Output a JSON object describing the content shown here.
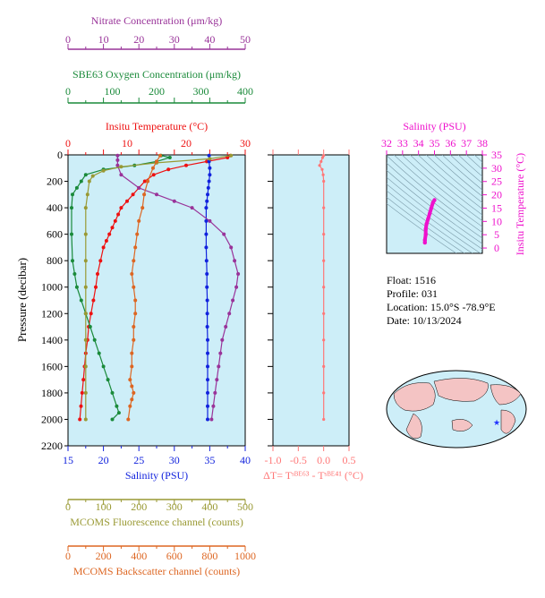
{
  "chart_data": [
    {
      "type": "line",
      "panel": "main-profile",
      "ylabel": "Pressure (decibar)",
      "ylim": [
        2200,
        0
      ],
      "yticks": [
        0,
        200,
        400,
        600,
        800,
        1000,
        1200,
        1400,
        1600,
        1800,
        2000,
        2200
      ],
      "axes": [
        {
          "key": "nitrate",
          "label": "Nitrate Concentration (μm/kg)",
          "range": [
            0,
            50
          ],
          "ticks": [
            0,
            10,
            20,
            30,
            40,
            50
          ],
          "color": "#993399"
        },
        {
          "key": "oxygen",
          "label": "SBE63 Oxygen Concentration (μm/kg)",
          "range": [
            0,
            400
          ],
          "ticks": [
            0,
            100,
            200,
            300,
            400
          ],
          "color": "#1a8a3a"
        },
        {
          "key": "temperature",
          "label": "Insitu Temperature (°C)",
          "range": [
            0,
            30
          ],
          "ticks": [
            0,
            10,
            20,
            30
          ],
          "color": "#ee1111"
        },
        {
          "key": "salinity",
          "label": "Salinity (PSU)",
          "range": [
            15,
            40
          ],
          "ticks": [
            15,
            20,
            25,
            30,
            35,
            40
          ],
          "color": "#1122dd"
        },
        {
          "key": "fluorescence",
          "label": "MCOMS Fluorescence channel (counts)",
          "range": [
            0,
            500
          ],
          "ticks": [
            0,
            100,
            200,
            300,
            400,
            500
          ],
          "color": "#999933"
        },
        {
          "key": "backscatter",
          "label": "MCOMS Backscatter channel (counts)",
          "range": [
            0,
            1000
          ],
          "ticks": [
            0,
            200,
            400,
            600,
            800,
            1000
          ],
          "color": "#dd6622"
        }
      ],
      "series": [
        {
          "key": "temperature",
          "x_axis": "temperature",
          "color": "#ee1111",
          "points": [
            [
              27.5,
              5
            ],
            [
              27,
              20
            ],
            [
              23.5,
              50
            ],
            [
              20,
              80
            ],
            [
              17,
              110
            ],
            [
              14.5,
              150
            ],
            [
              13,
              200
            ],
            [
              12,
              250
            ],
            [
              11,
              300
            ],
            [
              10,
              350
            ],
            [
              9,
              400
            ],
            [
              8.5,
              450
            ],
            [
              8,
              500
            ],
            [
              7.5,
              550
            ],
            [
              7,
              600
            ],
            [
              6.5,
              650
            ],
            [
              6,
              700
            ],
            [
              5.5,
              800
            ],
            [
              5,
              900
            ],
            [
              4.7,
              1000
            ],
            [
              4.3,
              1100
            ],
            [
              3.9,
              1200
            ],
            [
              3.5,
              1300
            ],
            [
              3.3,
              1400
            ],
            [
              3,
              1500
            ],
            [
              2.8,
              1600
            ],
            [
              2.6,
              1700
            ],
            [
              2.4,
              1800
            ],
            [
              2.2,
              1900
            ],
            [
              2,
              2000
            ]
          ]
        },
        {
          "key": "salinity",
          "x_axis": "salinity",
          "color": "#1122dd",
          "points": [
            [
              34.9,
              5
            ],
            [
              34.9,
              50
            ],
            [
              35,
              100
            ],
            [
              35,
              150
            ],
            [
              34.9,
              200
            ],
            [
              34.8,
              250
            ],
            [
              34.7,
              300
            ],
            [
              34.6,
              350
            ],
            [
              34.5,
              400
            ],
            [
              34.5,
              500
            ],
            [
              34.5,
              600
            ],
            [
              34.5,
              700
            ],
            [
              34.55,
              800
            ],
            [
              34.6,
              900
            ],
            [
              34.6,
              1000
            ],
            [
              34.65,
              1100
            ],
            [
              34.65,
              1200
            ],
            [
              34.65,
              1300
            ],
            [
              34.7,
              1400
            ],
            [
              34.7,
              1500
            ],
            [
              34.7,
              1600
            ],
            [
              34.7,
              1700
            ],
            [
              34.7,
              1800
            ],
            [
              34.7,
              1900
            ],
            [
              34.7,
              2000
            ]
          ]
        },
        {
          "key": "nitrate",
          "x_axis": "nitrate",
          "color": "#993399",
          "points": [
            [
              14,
              5
            ],
            [
              14,
              40
            ],
            [
              14,
              80
            ],
            [
              15,
              150
            ],
            [
              20,
              250
            ],
            [
              25,
              300
            ],
            [
              30,
              350
            ],
            [
              35,
              400
            ],
            [
              40,
              500
            ],
            [
              44,
              600
            ],
            [
              46,
              700
            ],
            [
              47,
              800
            ],
            [
              48,
              900
            ],
            [
              47.5,
              1000
            ],
            [
              46.5,
              1100
            ],
            [
              45.5,
              1200
            ],
            [
              44.5,
              1300
            ],
            [
              43.5,
              1400
            ],
            [
              43,
              1500
            ],
            [
              42.5,
              1600
            ],
            [
              42,
              1700
            ],
            [
              41.5,
              1800
            ],
            [
              41,
              1900
            ],
            [
              40.5,
              2000
            ]
          ]
        },
        {
          "key": "oxygen",
          "x_axis": "oxygen",
          "color": "#1a8a3a",
          "points": [
            [
              210,
              5
            ],
            [
              230,
              20
            ],
            [
              200,
              50
            ],
            [
              150,
              80
            ],
            [
              80,
              110
            ],
            [
              40,
              150
            ],
            [
              30,
              200
            ],
            [
              20,
              250
            ],
            [
              10,
              300
            ],
            [
              8,
              400
            ],
            [
              8,
              600
            ],
            [
              10,
              800
            ],
            [
              15,
              900
            ],
            [
              20,
              1000
            ],
            [
              30,
              1100
            ],
            [
              40,
              1200
            ],
            [
              50,
              1300
            ],
            [
              60,
              1400
            ],
            [
              70,
              1500
            ],
            [
              80,
              1600
            ],
            [
              90,
              1700
            ],
            [
              100,
              1800
            ],
            [
              110,
              1900
            ],
            [
              115,
              1950
            ],
            [
              100,
              2000
            ]
          ]
        },
        {
          "key": "fluorescence",
          "x_axis": "fluorescence",
          "color": "#999933",
          "points": [
            [
              460,
              5
            ],
            [
              400,
              30
            ],
            [
              250,
              60
            ],
            [
              150,
              90
            ],
            [
              100,
              120
            ],
            [
              70,
              160
            ],
            [
              60,
              200
            ],
            [
              55,
              300
            ],
            [
              50,
              400
            ],
            [
              50,
              600
            ],
            [
              50,
              800
            ],
            [
              50,
              1000
            ],
            [
              50,
              1200
            ],
            [
              50,
              1400
            ],
            [
              50,
              1600
            ],
            [
              50,
              1800
            ],
            [
              50,
              2000
            ]
          ]
        },
        {
          "key": "backscatter",
          "x_axis": "backscatter",
          "color": "#dd6622",
          "points": [
            [
              520,
              5
            ],
            [
              500,
              50
            ],
            [
              480,
              100
            ],
            [
              450,
              200
            ],
            [
              430,
              300
            ],
            [
              420,
              400
            ],
            [
              400,
              500
            ],
            [
              390,
              600
            ],
            [
              380,
              700
            ],
            [
              370,
              800
            ],
            [
              360,
              900
            ],
            [
              370,
              1000
            ],
            [
              380,
              1100
            ],
            [
              380,
              1200
            ],
            [
              370,
              1300
            ],
            [
              370,
              1400
            ],
            [
              360,
              1500
            ],
            [
              360,
              1600
            ],
            [
              350,
              1700
            ],
            [
              360,
              1750
            ],
            [
              370,
              1800
            ],
            [
              360,
              1850
            ],
            [
              350,
              1900
            ],
            [
              340,
              2000
            ]
          ]
        }
      ]
    },
    {
      "type": "line",
      "panel": "delta-t",
      "xlabel": "ΔT= T^SBE63 - T^SBE41 (°C)",
      "xlim": [
        -1.0,
        0.5
      ],
      "xticks": [
        -1.0,
        -0.5,
        0.0,
        0.5
      ],
      "ylim": [
        2200,
        0
      ],
      "color": "#ff7777",
      "points": [
        [
          0.0,
          5
        ],
        [
          -0.02,
          20
        ],
        [
          -0.05,
          50
        ],
        [
          -0.08,
          80
        ],
        [
          -0.03,
          110
        ],
        [
          -0.01,
          150
        ],
        [
          0.0,
          200
        ],
        [
          0.0,
          400
        ],
        [
          0.0,
          600
        ],
        [
          0.0,
          800
        ],
        [
          0.0,
          1000
        ],
        [
          0.0,
          1200
        ],
        [
          0.0,
          1400
        ],
        [
          0.0,
          1600
        ],
        [
          0.0,
          1800
        ],
        [
          0.0,
          2000
        ]
      ]
    },
    {
      "type": "scatter",
      "panel": "ts-diagram",
      "title": "Salinity (PSU)",
      "ylabel": "Insitu Temperature (°C)",
      "xlim": [
        32,
        38
      ],
      "xticks": [
        32,
        33,
        34,
        35,
        36,
        37,
        38
      ],
      "ylim": [
        -2,
        35
      ],
      "yticks": [
        0,
        5,
        10,
        15,
        20,
        25,
        30,
        35
      ],
      "color": "#ee11cc",
      "points": [
        [
          35.0,
          18
        ],
        [
          34.9,
          17
        ],
        [
          34.8,
          15
        ],
        [
          34.7,
          13
        ],
        [
          34.6,
          11
        ],
        [
          34.5,
          9
        ],
        [
          34.45,
          7
        ],
        [
          34.45,
          5
        ],
        [
          34.4,
          3
        ],
        [
          34.4,
          2
        ]
      ]
    }
  ],
  "info": {
    "float": "Float:  1516",
    "profile": "Profile:  031",
    "location": "Location:  15.0°S  -78.9°E",
    "date": "Date:  10/13/2024"
  },
  "colors": {
    "panel_bg": "#cdeef8",
    "land": "#f4c4c4",
    "marker": "#2233ff"
  }
}
